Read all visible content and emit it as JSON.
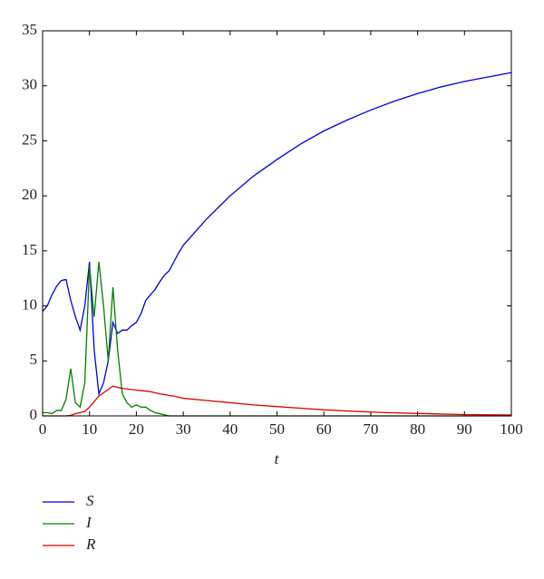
{
  "chart_data": {
    "type": "line",
    "x_label": "t",
    "x": [
      0,
      1,
      2,
      3,
      4,
      5,
      6,
      7,
      8,
      9,
      10,
      11,
      12,
      13,
      14,
      15,
      16,
      17,
      18,
      19,
      20,
      21,
      22,
      23,
      24,
      25,
      26,
      27,
      28,
      29,
      30,
      35,
      40,
      45,
      50,
      55,
      60,
      65,
      70,
      75,
      80,
      85,
      90,
      95,
      100
    ],
    "series": [
      {
        "name": "S",
        "color": "#0000dd",
        "values": [
          9.5,
          10,
          11,
          11.8,
          12.3,
          12.4,
          10.5,
          9,
          7.8,
          10,
          14,
          6,
          2,
          3,
          5,
          8.5,
          7.5,
          7.8,
          7.8,
          8.2,
          8.5,
          9.3,
          10.5,
          11,
          11.5,
          12.2,
          12.8,
          13.2,
          14,
          14.8,
          15.5,
          17.9,
          20,
          21.8,
          23.3,
          24.7,
          25.9,
          26.9,
          27.8,
          28.6,
          29.3,
          29.9,
          30.4,
          30.8,
          31.2
        ]
      },
      {
        "name": "I",
        "color": "#008000",
        "values": [
          0.3,
          0.3,
          0.2,
          0.5,
          0.5,
          1.5,
          4.3,
          1.2,
          0.8,
          3,
          13.6,
          9,
          14,
          10,
          5,
          11.7,
          6,
          2,
          1.2,
          0.8,
          1,
          0.8,
          0.8,
          0.5,
          0.3,
          0.2,
          0.1,
          0,
          0,
          0,
          0,
          0,
          0,
          0,
          0,
          0,
          0,
          0,
          0,
          0,
          0,
          0,
          0,
          0,
          0
        ]
      },
      {
        "name": "R",
        "color": "#dd0000",
        "values": [
          0,
          0,
          0,
          0,
          0,
          0,
          0.05,
          0.2,
          0.3,
          0.4,
          0.8,
          1.3,
          1.8,
          2.1,
          2.4,
          2.7,
          2.6,
          2.5,
          2.45,
          2.4,
          2.35,
          2.3,
          2.25,
          2.2,
          2.1,
          2.0,
          1.95,
          1.85,
          1.8,
          1.7,
          1.6,
          1.4,
          1.2,
          1.0,
          0.85,
          0.7,
          0.55,
          0.45,
          0.35,
          0.28,
          0.22,
          0.17,
          0.12,
          0.1,
          0.08
        ]
      }
    ],
    "xlim": [
      0,
      100
    ],
    "xticks": [
      0,
      10,
      20,
      30,
      40,
      50,
      60,
      70,
      80,
      90,
      100
    ],
    "ylim": [
      0,
      35
    ],
    "yticks": [
      0,
      5,
      10,
      15,
      20,
      25,
      30,
      35
    ],
    "grid": false
  }
}
